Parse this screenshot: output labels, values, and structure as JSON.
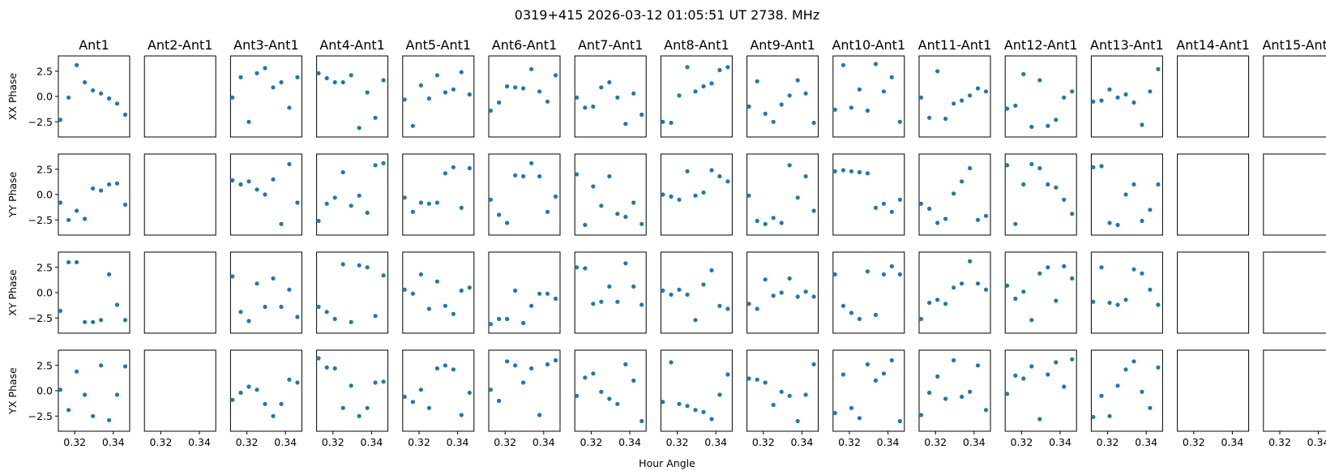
{
  "chart_data": {
    "type": "scatter",
    "title": "0319+415  2026-03-12 01:05:51 UT  2738. MHz",
    "xlabel": "Hour Angle",
    "columns": [
      "Ant1",
      "Ant2-Ant1",
      "Ant3-Ant1",
      "Ant4-Ant1",
      "Ant5-Ant1",
      "Ant6-Ant1",
      "Ant7-Ant1",
      "Ant8-Ant1",
      "Ant9-Ant1",
      "Ant10-Ant1",
      "Ant11-Ant1",
      "Ant12-Ant1",
      "Ant13-Ant1",
      "Ant14-Ant1",
      "Ant15-Ant1"
    ],
    "rows": [
      "XX Phase",
      "YY Phase",
      "XY Phase",
      "YX Phase"
    ],
    "xlim": [
      0.3115,
      0.3485
    ],
    "ylim": [
      -4.0,
      4.0
    ],
    "xticks": [
      0.32,
      0.34
    ],
    "xtick_labels": [
      "0.32",
      "0.34"
    ],
    "yticks": [
      2.5,
      0.0,
      -2.5
    ],
    "ytick_labels": [
      "2.5",
      "0.0",
      "−2.5"
    ],
    "marker_color": "#1f77b4",
    "x": [
      0.3125,
      0.3168,
      0.321,
      0.3252,
      0.3294,
      0.3336,
      0.3378,
      0.342,
      0.3462
    ],
    "series": [
      [
        [
          -2.3,
          -0.1,
          3.1,
          1.4,
          0.6,
          0.3,
          -0.2,
          -0.7,
          -1.8
        ],
        null,
        [
          -0.1,
          1.9,
          -2.5,
          2.3,
          2.8,
          0.9,
          1.4,
          -1.1,
          1.9
        ],
        [
          2.3,
          1.8,
          1.4,
          1.4,
          2.1,
          -3.1,
          0.4,
          -2.1,
          1.6
        ],
        [
          -0.3,
          -2.9,
          1.1,
          -0.2,
          2.1,
          0.4,
          0.7,
          2.4,
          0.2
        ],
        [
          -1.4,
          -0.6,
          1.0,
          0.9,
          0.8,
          2.7,
          0.5,
          -0.5,
          2.1
        ],
        [
          -0.1,
          -1.1,
          -1.0,
          0.9,
          1.4,
          -0.1,
          -2.7,
          0.3,
          -1.8
        ],
        [
          -2.5,
          -2.6,
          0.1,
          2.9,
          0.5,
          1.0,
          1.3,
          2.6,
          2.9
        ],
        [
          -1.0,
          1.5,
          -1.7,
          -2.5,
          -0.8,
          0.1,
          1.6,
          0.3,
          -2.6
        ],
        [
          -1.3,
          3.1,
          -1.1,
          0.7,
          -1.4,
          3.2,
          0.5,
          1.9,
          -2.5
        ],
        [
          -0.1,
          -2.1,
          2.5,
          -2.2,
          -0.7,
          -0.4,
          0.1,
          0.8,
          0.5
        ],
        [
          -1.2,
          -0.9,
          2.2,
          -3.0,
          1.6,
          -2.9,
          -2.3,
          -0.1,
          0.5
        ],
        [
          -0.5,
          -0.4,
          0.7,
          -0.1,
          0.2,
          -0.6,
          -2.8,
          0.5,
          2.7
        ],
        null,
        null
      ],
      [
        [
          -0.8,
          -2.5,
          -1.6,
          -2.4,
          0.6,
          0.4,
          1.0,
          1.1,
          -1.0
        ],
        null,
        [
          1.4,
          1.0,
          1.3,
          0.5,
          0.0,
          1.5,
          -2.9,
          3.0,
          -0.8
        ],
        [
          -2.6,
          -0.9,
          -0.3,
          2.2,
          -1.1,
          -0.1,
          -1.8,
          2.9,
          3.1
        ],
        [
          -0.3,
          -1.7,
          -0.8,
          -0.9,
          -0.8,
          2.1,
          2.7,
          -1.3,
          2.6
        ],
        [
          -0.5,
          -2.0,
          -2.8,
          1.9,
          1.8,
          3.1,
          1.8,
          -1.7,
          -0.2
        ],
        [
          2.0,
          -3.0,
          0.8,
          -1.1,
          1.8,
          -1.9,
          -2.2,
          -0.8,
          -2.9
        ],
        [
          0.0,
          -0.2,
          -0.5,
          2.3,
          -0.1,
          0.2,
          2.4,
          1.8,
          1.3
        ],
        [
          -0.1,
          -2.6,
          -2.9,
          -2.3,
          -2.8,
          2.9,
          -0.3,
          1.8,
          -1.6
        ],
        [
          2.3,
          2.4,
          2.3,
          2.2,
          2.1,
          -1.3,
          -0.9,
          -1.7,
          -0.5
        ],
        [
          -0.9,
          -1.4,
          -2.8,
          -2.4,
          0.1,
          1.3,
          2.6,
          -2.5,
          -2.1
        ],
        [
          2.9,
          -2.9,
          1.0,
          3.0,
          2.6,
          1.0,
          0.7,
          -0.5,
          -1.9
        ],
        [
          2.7,
          2.8,
          -2.8,
          -3.0,
          0.0,
          1.0,
          -2.6,
          -1.5,
          1.0
        ],
        null,
        null
      ],
      [
        [
          -1.8,
          3.0,
          3.0,
          -2.9,
          -2.9,
          -2.7,
          1.8,
          -1.2,
          -2.7
        ],
        null,
        [
          1.6,
          -1.9,
          -2.8,
          0.9,
          -1.4,
          1.4,
          -1.4,
          0.3,
          -2.4
        ],
        [
          -1.4,
          -1.9,
          -2.6,
          2.8,
          -2.9,
          2.7,
          2.5,
          -2.3,
          1.7
        ],
        [
          0.3,
          -0.1,
          1.8,
          -1.6,
          1.1,
          -1.3,
          -2.1,
          0.2,
          0.5
        ],
        [
          -3.1,
          -2.6,
          -2.6,
          0.2,
          -3.0,
          -1.3,
          -0.1,
          -0.1,
          -0.6
        ],
        [
          2.5,
          2.4,
          -1.1,
          -0.9,
          0.6,
          -0.9,
          2.9,
          0.6,
          -1.2
        ],
        [
          0.2,
          -0.2,
          0.3,
          -0.2,
          -2.7,
          0.8,
          2.2,
          -1.3,
          -1.6
        ],
        [
          -1.1,
          -1.6,
          1.3,
          -0.3,
          0.0,
          1.4,
          -0.4,
          0.1,
          -0.4
        ],
        [
          1.8,
          -1.3,
          -2.0,
          -2.6,
          2.1,
          -2.2,
          1.8,
          2.6,
          1.8
        ],
        [
          -2.6,
          -1.0,
          -0.7,
          -1.1,
          0.5,
          0.9,
          3.1,
          0.9,
          0.3
        ],
        [
          0.7,
          -0.6,
          0.1,
          -2.7,
          1.9,
          2.5,
          -0.8,
          2.6,
          1.4
        ],
        [
          -0.9,
          2.5,
          -1.0,
          -1.2,
          -0.7,
          2.3,
          1.9,
          0.3,
          -1.2
        ],
        null,
        null
      ],
      [
        [
          0.1,
          -1.9,
          1.9,
          -0.4,
          -2.5,
          2.5,
          -2.9,
          -0.4,
          2.4
        ],
        null,
        [
          -0.9,
          -0.2,
          0.4,
          0.1,
          -1.3,
          -2.5,
          -1.3,
          1.1,
          0.8
        ],
        [
          3.2,
          2.3,
          2.2,
          -1.7,
          0.5,
          -2.5,
          -1.7,
          0.8,
          0.9
        ],
        [
          -0.6,
          -1.1,
          0.1,
          -1.7,
          2.2,
          2.5,
          2.1,
          -2.4,
          -0.2
        ],
        [
          0.1,
          -1.0,
          2.9,
          2.5,
          0.8,
          2.2,
          -2.4,
          2.6,
          3.0
        ],
        [
          -0.5,
          1.3,
          1.7,
          -0.1,
          -0.8,
          -1.3,
          2.6,
          1.0,
          -3.0
        ],
        [
          -1.1,
          2.8,
          -1.3,
          -1.5,
          -1.9,
          -2.1,
          -2.8,
          -0.4,
          1.6
        ],
        [
          1.2,
          1.1,
          0.8,
          -1.4,
          -0.1,
          -0.5,
          -3.0,
          -0.4,
          2.6
        ],
        [
          -2.2,
          1.6,
          -1.7,
          -2.7,
          2.6,
          1.0,
          1.7,
          3.0,
          -3.0
        ],
        [
          -2.4,
          -0.2,
          1.4,
          -0.8,
          3.0,
          -0.6,
          -0.1,
          2.5,
          -1.9
        ],
        [
          -0.3,
          1.5,
          1.2,
          2.4,
          -2.8,
          1.6,
          2.8,
          0.4,
          3.1
        ],
        [
          -2.6,
          -0.5,
          -2.5,
          0.5,
          2.1,
          2.9,
          -0.1,
          -1.7,
          2.3
        ],
        null,
        null
      ]
    ]
  }
}
